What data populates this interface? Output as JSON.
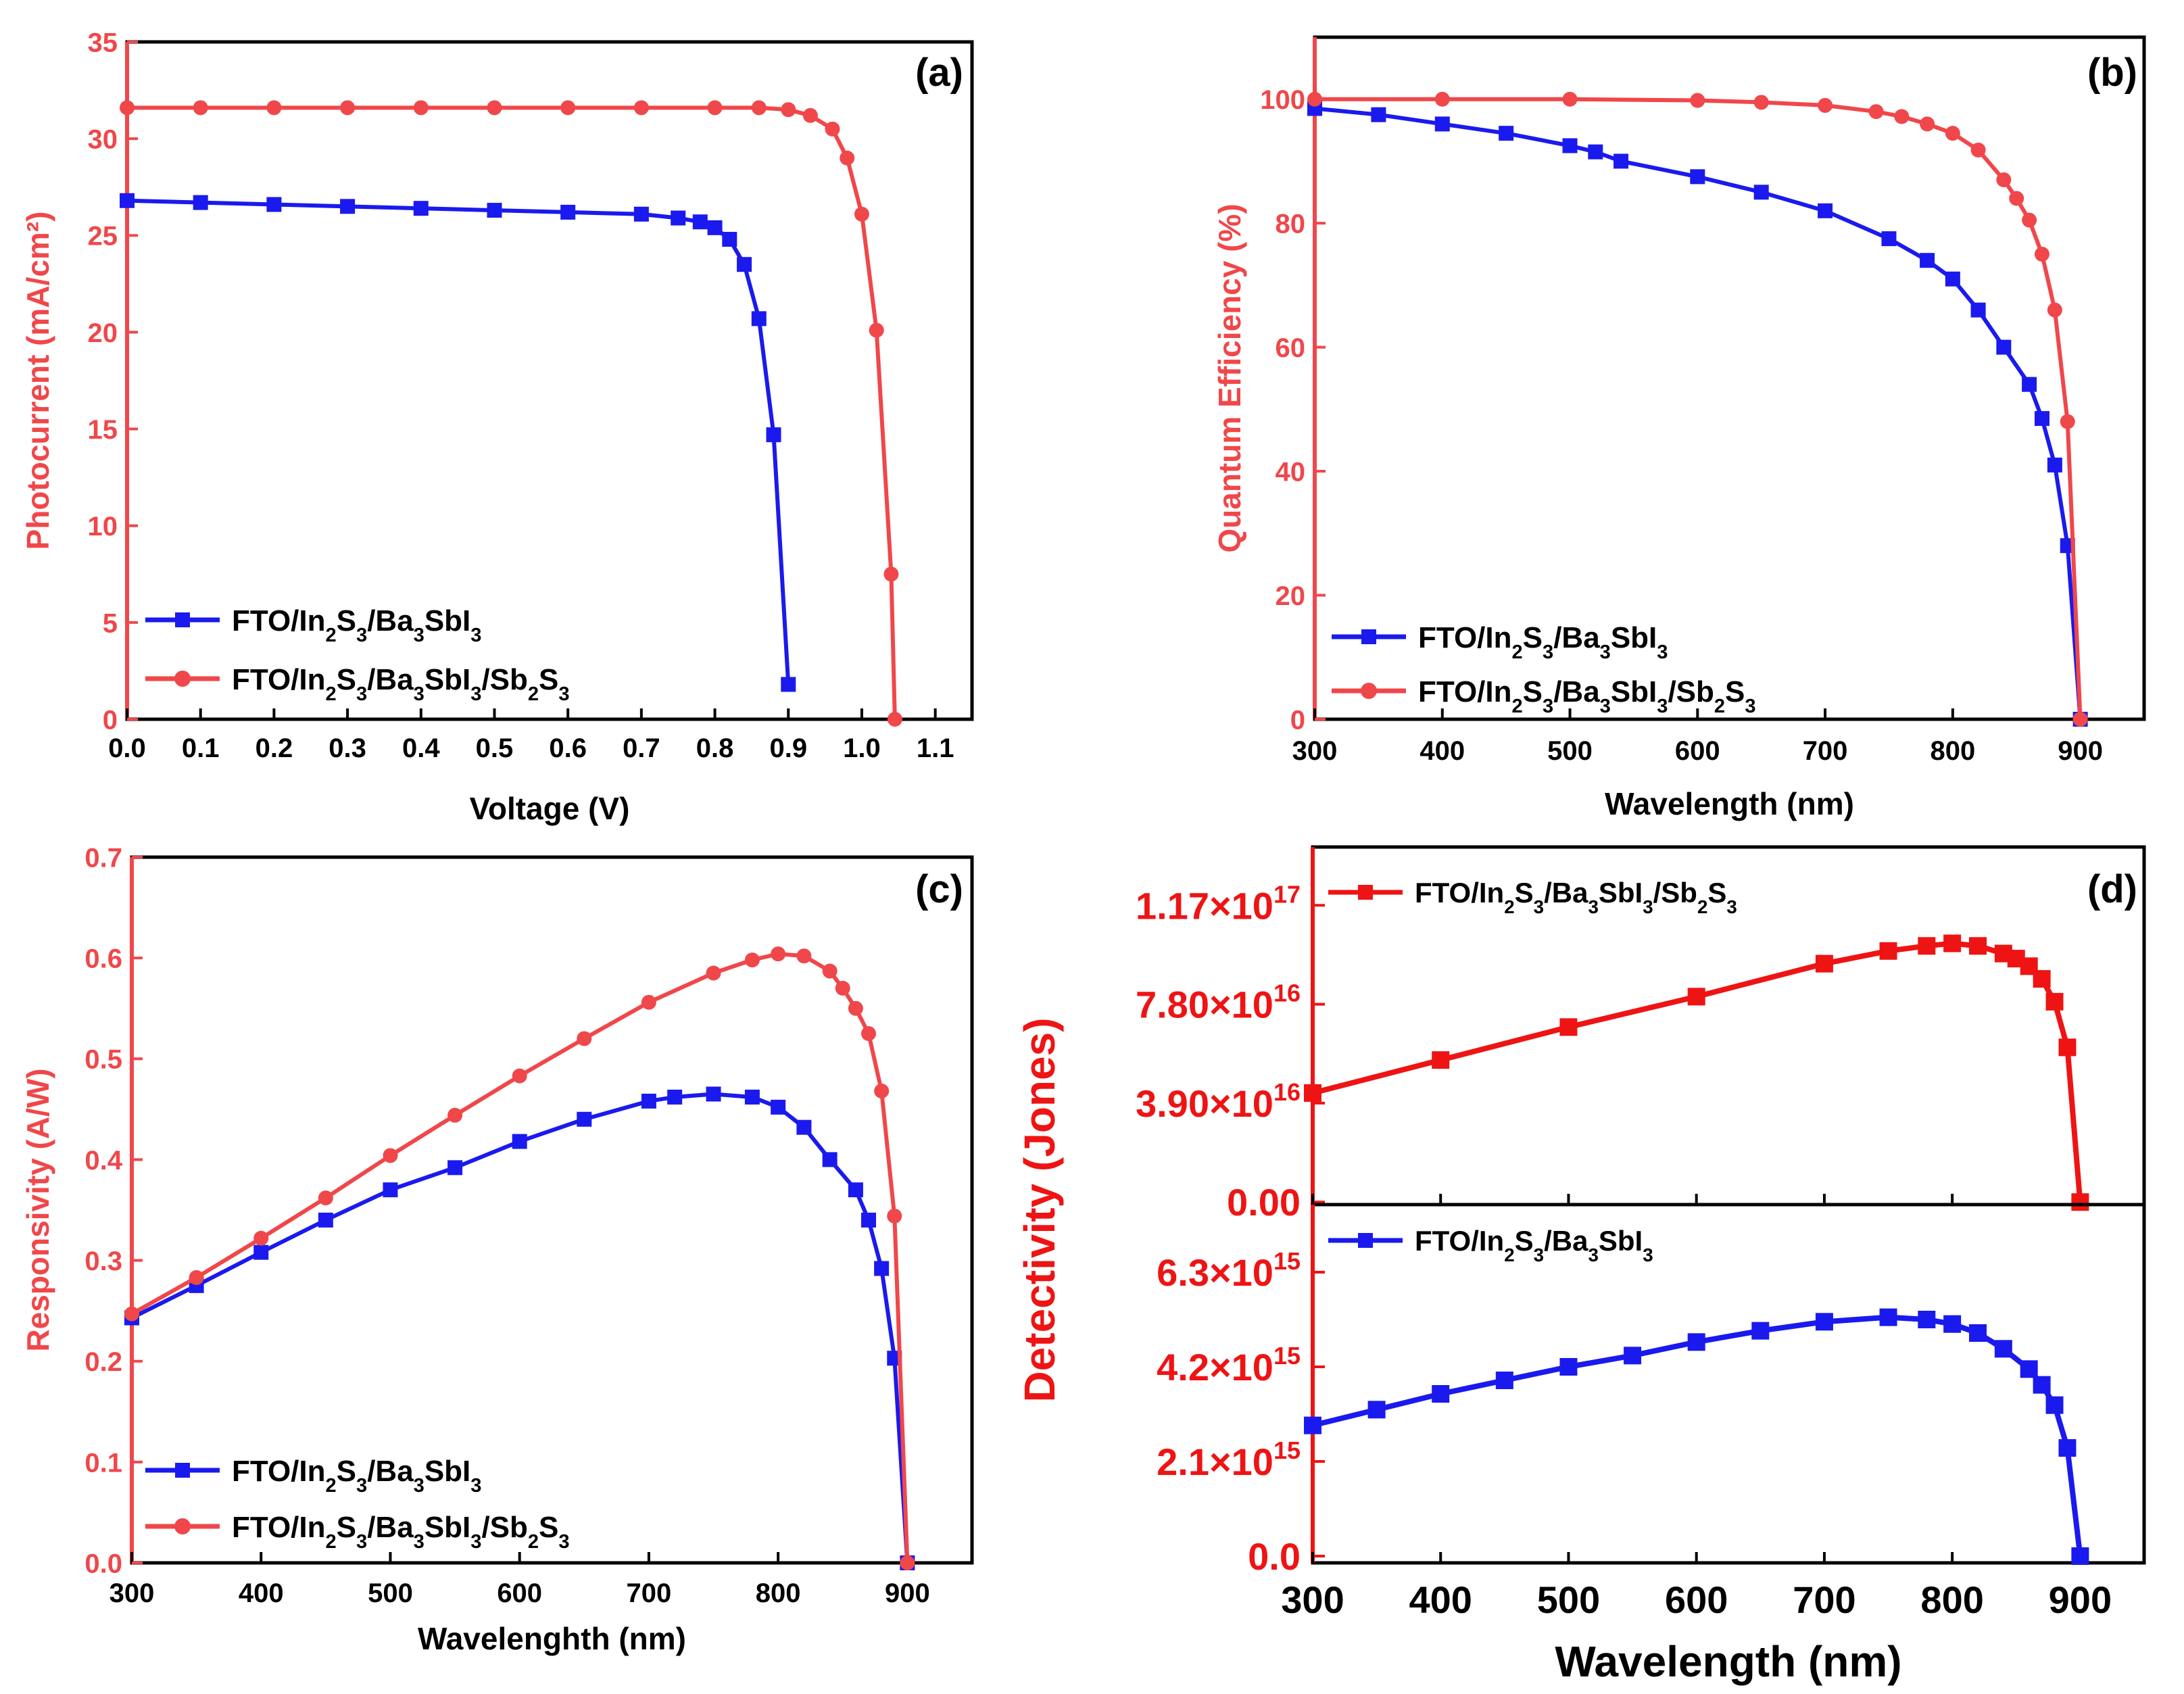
{
  "colors": {
    "red": "#f0474a",
    "blue": "#1a1aee",
    "dred": "#ee1414",
    "black": "#000000"
  },
  "chart_data": [
    {
      "panel": "a",
      "panel_label": "(a)",
      "type": "line",
      "xlabel": "Voltage (V)",
      "ylabel": "Photocurrent (mA/cm²)",
      "xlim": [
        0,
        1.15
      ],
      "ylim": [
        0,
        35
      ],
      "xticks": [
        "0.0",
        "0.1",
        "0.2",
        "0.3",
        "0.4",
        "0.5",
        "0.6",
        "0.7",
        "0.8",
        "0.9",
        "1.0",
        "1.1"
      ],
      "yticks": [
        "0",
        "5",
        "10",
        "15",
        "20",
        "25",
        "30",
        "35"
      ],
      "series": [
        {
          "name": "FTO/In2S3/Ba3SbI3",
          "legend": [
            "FTO/In",
            "2",
            "S",
            "3",
            "/Ba",
            "3",
            "SbI",
            "3"
          ],
          "color": "blue",
          "marker": "square",
          "x": [
            0,
            0.1,
            0.2,
            0.3,
            0.4,
            0.5,
            0.6,
            0.7,
            0.75,
            0.78,
            0.8,
            0.82,
            0.84,
            0.86,
            0.88,
            0.9
          ],
          "y": [
            26.8,
            26.7,
            26.6,
            26.5,
            26.4,
            26.3,
            26.2,
            26.1,
            25.9,
            25.7,
            25.4,
            24.8,
            23.5,
            20.7,
            14.7,
            1.8
          ]
        },
        {
          "name": "FTO/In2S3/Ba3SbI3/Sb2S3",
          "legend": [
            "FTO/In",
            "2",
            "S",
            "3",
            "/Ba",
            "3",
            "SbI",
            "3",
            "/Sb",
            "2",
            "S",
            "3"
          ],
          "color": "red",
          "marker": "circle",
          "x": [
            0,
            0.1,
            0.2,
            0.3,
            0.4,
            0.5,
            0.6,
            0.7,
            0.8,
            0.86,
            0.9,
            0.93,
            0.96,
            0.98,
            1.0,
            1.02,
            1.04,
            1.045
          ],
          "y": [
            31.6,
            31.6,
            31.6,
            31.6,
            31.6,
            31.6,
            31.6,
            31.6,
            31.6,
            31.6,
            31.5,
            31.2,
            30.5,
            29,
            26.1,
            20.1,
            7.5,
            0
          ]
        }
      ]
    },
    {
      "panel": "b",
      "panel_label": "(b)",
      "type": "line",
      "xlabel": "Wavelength (nm)",
      "ylabel": "Quantum Efficiency (%)",
      "xlim": [
        300,
        950
      ],
      "ylim": [
        0,
        110
      ],
      "xticks": [
        "300",
        "400",
        "500",
        "600",
        "700",
        "800",
        "900"
      ],
      "yticks": [
        "0",
        "20",
        "40",
        "60",
        "80",
        "100"
      ],
      "series": [
        {
          "name": "FTO/In2S3/Ba3SbI3",
          "legend": [
            "FTO/In",
            "2",
            "S",
            "3",
            "/Ba",
            "3",
            "SbI",
            "3"
          ],
          "color": "blue",
          "marker": "square",
          "x": [
            300,
            350,
            400,
            450,
            500,
            520,
            540,
            600,
            650,
            700,
            750,
            780,
            800,
            820,
            840,
            860,
            870,
            880,
            890,
            900
          ],
          "y": [
            98.5,
            97.5,
            96,
            94.5,
            92.5,
            91.5,
            90,
            87.5,
            85,
            82,
            77.5,
            74,
            71,
            66,
            60,
            54,
            48.5,
            41,
            28,
            0
          ]
        },
        {
          "name": "FTO/In2S3/Ba3SbI3/Sb2S3",
          "legend": [
            "FTO/In",
            "2",
            "S",
            "3",
            "/Ba",
            "3",
            "SbI",
            "3",
            "/Sb",
            "2",
            "S",
            "3"
          ],
          "color": "red",
          "marker": "circle",
          "x": [
            300,
            400,
            500,
            600,
            650,
            700,
            740,
            760,
            780,
            800,
            820,
            840,
            850,
            860,
            870,
            880,
            890,
            900
          ],
          "y": [
            100,
            100,
            100,
            99.8,
            99.5,
            99,
            98,
            97.2,
            96,
            94.5,
            91.8,
            87,
            84,
            80.5,
            75,
            66,
            48,
            0
          ]
        }
      ]
    },
    {
      "panel": "c",
      "panel_label": "(c)",
      "type": "line",
      "xlabel": "Wavelenghth (nm)",
      "ylabel": "Responsivity (A/W)",
      "xlim": [
        300,
        950
      ],
      "ylim": [
        0,
        0.7
      ],
      "xticks": [
        "300",
        "400",
        "500",
        "600",
        "700",
        "800",
        "900"
      ],
      "yticks": [
        "0.0",
        "0.1",
        "0.2",
        "0.3",
        "0.4",
        "0.5",
        "0.6",
        "0.7"
      ],
      "series": [
        {
          "name": "FTO/In2S3/Ba3SbI3",
          "legend": [
            "FTO/In",
            "2",
            "S",
            "3",
            "/Ba",
            "3",
            "SbI",
            "3"
          ],
          "color": "blue",
          "marker": "square",
          "x": [
            300,
            350,
            400,
            450,
            500,
            550,
            600,
            650,
            700,
            720,
            750,
            780,
            800,
            820,
            840,
            860,
            870,
            880,
            890,
            900
          ],
          "y": [
            0.243,
            0.275,
            0.308,
            0.34,
            0.37,
            0.392,
            0.418,
            0.44,
            0.458,
            0.462,
            0.465,
            0.462,
            0.452,
            0.432,
            0.4,
            0.37,
            0.34,
            0.292,
            0.203,
            0
          ]
        },
        {
          "name": "FTO/In2S3/Ba3SbI3/Sb2S3",
          "legend": [
            "FTO/In",
            "2",
            "S",
            "3",
            "/Ba",
            "3",
            "SbI",
            "3",
            "/Sb",
            "2",
            "S",
            "3"
          ],
          "color": "red",
          "marker": "circle",
          "x": [
            300,
            350,
            400,
            450,
            500,
            550,
            600,
            650,
            700,
            750,
            780,
            800,
            820,
            840,
            850,
            860,
            870,
            880,
            890,
            900
          ],
          "y": [
            0.247,
            0.283,
            0.322,
            0.362,
            0.404,
            0.444,
            0.483,
            0.52,
            0.556,
            0.585,
            0.598,
            0.604,
            0.602,
            0.587,
            0.57,
            0.55,
            0.525,
            0.468,
            0.344,
            0
          ]
        }
      ]
    },
    {
      "panel": "d",
      "panel_label": "(d)",
      "type": "line",
      "xlabel": "Wavelength (nm)",
      "ylabel": "Detectivity (Jones)",
      "xlim": [
        300,
        950
      ],
      "xticks": [
        "300",
        "400",
        "500",
        "600",
        "700",
        "800",
        "900"
      ],
      "subplots": [
        {
          "position": "top",
          "ylim": [
            -1000000000000000.0,
            1.4e+17
          ],
          "yticks": [
            "0.00",
            "3.90×10",
            "7.80×10",
            "1.17×10"
          ],
          "yticks_exp": [
            "",
            "16",
            "16",
            "17"
          ],
          "ytick_values": [
            0,
            3.9e+16,
            7.8e+16,
            1.17e+17
          ],
          "series": {
            "name": "FTO/In2S3/Ba3SbI3/Sb2S3",
            "legend": [
              "FTO/In",
              "2",
              "S",
              "3",
              "/Ba",
              "3",
              "SbI",
              "3",
              "/Sb",
              "2",
              "S",
              "3"
            ],
            "color": "dred",
            "marker": "square",
            "x": [
              300,
              400,
              500,
              600,
              700,
              750,
              780,
              800,
              820,
              840,
              850,
              860,
              870,
              880,
              890,
              900
            ],
            "y": [
              4.3e+16,
              5.6e+16,
              6.9e+16,
              8.1e+16,
              9.4e+16,
              9.9e+16,
              1.01e+17,
              1.02e+17,
              1.01e+17,
              9.8e+16,
              9.6e+16,
              9.3e+16,
              8.8e+16,
              7.9e+16,
              6.1e+16,
              0
            ]
          }
        },
        {
          "position": "bottom",
          "ylim": [
            -150000000000000.0,
            7800000000000000.0
          ],
          "yticks": [
            "0.0",
            "2.1×10",
            "4.2×10",
            "6.3×10"
          ],
          "yticks_exp": [
            "",
            "15",
            "15",
            "15"
          ],
          "ytick_values": [
            0,
            2100000000000000.0,
            4200000000000000.0,
            6300000000000000.0
          ],
          "series": {
            "name": "FTO/In2S3/Ba3SbI3",
            "legend": [
              "FTO/In",
              "2",
              "S",
              "3",
              "/Ba",
              "3",
              "SbI",
              "3"
            ],
            "color": "blue",
            "marker": "square",
            "x": [
              300,
              350,
              400,
              450,
              500,
              550,
              600,
              650,
              700,
              750,
              780,
              800,
              820,
              840,
              860,
              870,
              880,
              890,
              900
            ],
            "y": [
              2900000000000000.0,
              3250000000000000.0,
              3600000000000000.0,
              3900000000000000.0,
              4200000000000000.0,
              4450000000000000.0,
              4750000000000000.0,
              5000000000000000.0,
              5200000000000000.0,
              5300000000000000.0,
              5250000000000000.0,
              5150000000000000.0,
              4950000000000000.0,
              4600000000000000.0,
              4150000000000000.0,
              3800000000000000.0,
              3350000000000000.0,
              2400000000000000.0,
              0
            ]
          }
        }
      ]
    }
  ]
}
